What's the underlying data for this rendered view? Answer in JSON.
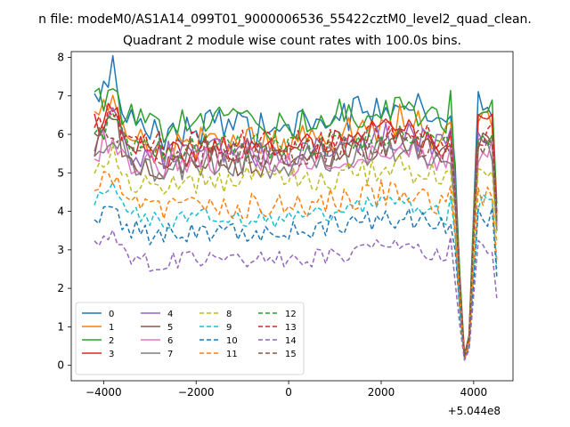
{
  "chart_data": {
    "type": "line",
    "suptitle": "n file: modeM0/AS1A14_099T01_9000006536_55422cztM0_level2_quad_clean.",
    "title": "Quadrant 2 module wise count rates with 100.0s bins.",
    "xlabel": "",
    "ylabel": "",
    "x_offset_label": "+5.044e8",
    "xlim": [
      -4700,
      4850
    ],
    "ylim": [
      -0.4,
      8.15
    ],
    "xticks": [
      -4000,
      -2000,
      0,
      2000,
      4000
    ],
    "xtick_labels": [
      "−4000",
      "−2000",
      "0",
      "2000",
      "4000"
    ],
    "yticks": [
      0,
      1,
      2,
      3,
      4,
      5,
      6,
      7,
      8
    ],
    "ytick_labels": [
      "0",
      "1",
      "2",
      "3",
      "4",
      "5",
      "6",
      "7",
      "8"
    ],
    "grid": false,
    "legend_position": "lower-left",
    "legend_columns": 4,
    "x": {
      "start": -4200,
      "step": 100,
      "count": 88
    },
    "dip": {
      "points": [
        3600,
        3700,
        3800,
        3900,
        4000
      ],
      "factors": [
        0.75,
        0.35,
        0.04,
        0.12,
        0.6
      ]
    },
    "series": [
      {
        "name": "0",
        "color": "#1f77b4",
        "dash": false,
        "base": 5.7,
        "peak": 7.7,
        "amp": 0.45
      },
      {
        "name": "1",
        "color": "#ff7f0e",
        "dash": false,
        "base": 5.5,
        "peak": 6.9,
        "amp": 0.45
      },
      {
        "name": "2",
        "color": "#2ca02c",
        "dash": false,
        "base": 6.0,
        "peak": 7.3,
        "amp": 0.45
      },
      {
        "name": "3",
        "color": "#d62728",
        "dash": false,
        "base": 5.2,
        "peak": 6.9,
        "amp": 0.4
      },
      {
        "name": "4",
        "color": "#9467bd",
        "dash": false,
        "base": 5.3,
        "peak": 6.4,
        "amp": 0.4
      },
      {
        "name": "5",
        "color": "#8c564b",
        "dash": false,
        "base": 5.0,
        "peak": 6.3,
        "amp": 0.4
      },
      {
        "name": "6",
        "color": "#e377c2",
        "dash": false,
        "base": 5.1,
        "peak": 6.0,
        "amp": 0.4
      },
      {
        "name": "7",
        "color": "#7f7f7f",
        "dash": false,
        "base": 5.0,
        "peak": 6.1,
        "amp": 0.4
      },
      {
        "name": "8",
        "color": "#bcbd22",
        "dash": true,
        "base": 4.6,
        "peak": 5.5,
        "amp": 0.35
      },
      {
        "name": "9",
        "color": "#17becf",
        "dash": true,
        "base": 3.6,
        "peak": 4.7,
        "amp": 0.25
      },
      {
        "name": "10",
        "color": "#1f77b4",
        "dash": true,
        "base": 3.3,
        "peak": 4.2,
        "amp": 0.3
      },
      {
        "name": "11",
        "color": "#ff7f0e",
        "dash": true,
        "base": 3.9,
        "peak": 5.0,
        "amp": 0.35
      },
      {
        "name": "12",
        "color": "#2ca02c",
        "dash": true,
        "base": 5.5,
        "peak": 6.3,
        "amp": 0.35
      },
      {
        "name": "13",
        "color": "#d62728",
        "dash": true,
        "base": 5.6,
        "peak": 6.4,
        "amp": 0.35
      },
      {
        "name": "14",
        "color": "#9467bd",
        "dash": true,
        "base": 2.5,
        "peak": 3.6,
        "amp": 0.25
      },
      {
        "name": "15",
        "color": "#8c564b",
        "dash": true,
        "base": 5.3,
        "peak": 6.2,
        "amp": 0.35
      }
    ]
  }
}
